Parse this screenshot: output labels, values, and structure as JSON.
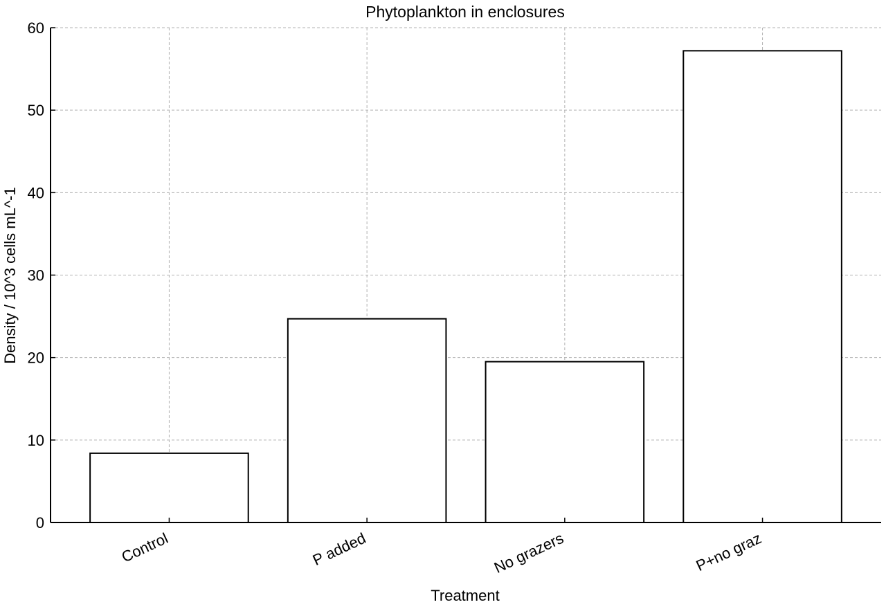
{
  "chart_data": {
    "type": "bar",
    "title": "Phytoplankton in enclosures",
    "xlabel": "Treatment",
    "ylabel": "Density / 10^3 cells mL^-1",
    "categories": [
      "Control",
      "P added",
      "No grazers",
      "P+no graz"
    ],
    "values": [
      8.4,
      24.7,
      19.5,
      57.2
    ],
    "ylim": [
      0,
      60
    ],
    "yticks": [
      0,
      10,
      20,
      30,
      40,
      50,
      60
    ],
    "grid": true,
    "legend": "none",
    "colors": {
      "bar_fill": "#ffffff",
      "bar_stroke": "#000000",
      "grid": "#b0b0b0",
      "axis": "#000000"
    }
  }
}
